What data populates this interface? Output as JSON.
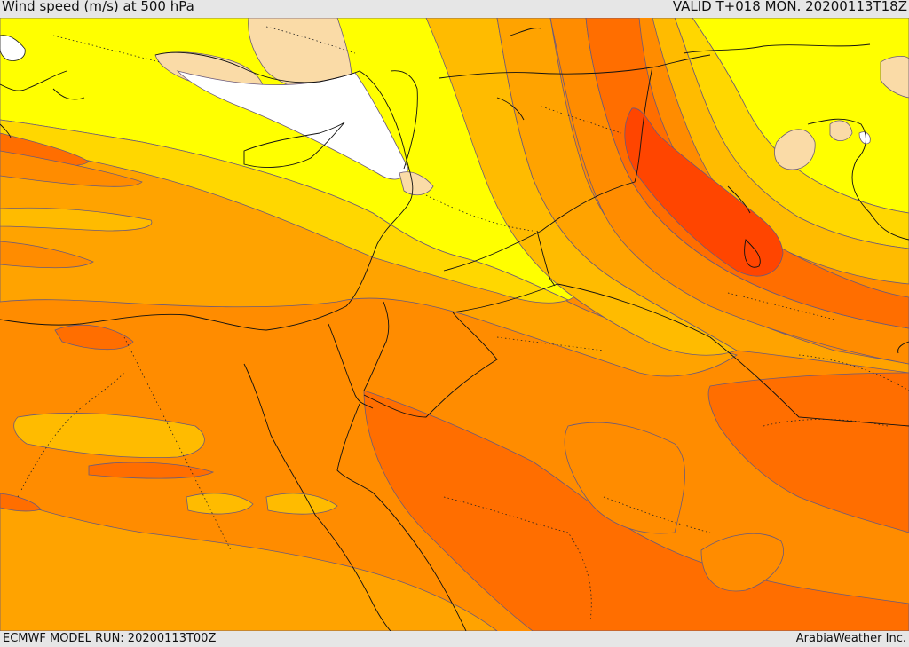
{
  "header": {
    "title": "Wind speed (m/s) at 500 hPa",
    "valid": "VALID T+018 MON. 20200113T18Z"
  },
  "footer": {
    "model_run": "ECMWF MODEL RUN: 20200113T00Z",
    "credit": "ArabiaWeather Inc."
  },
  "colors": {
    "white": "#ffffff",
    "peach": "#fadba7",
    "yellow": "#ffff00",
    "gold": "#ffd700",
    "amber": "#ffbb00",
    "orange_light": "#ffa300",
    "orange": "#ff8c00",
    "orange_dark": "#ff6e00",
    "red_orange": "#ff4500"
  }
}
